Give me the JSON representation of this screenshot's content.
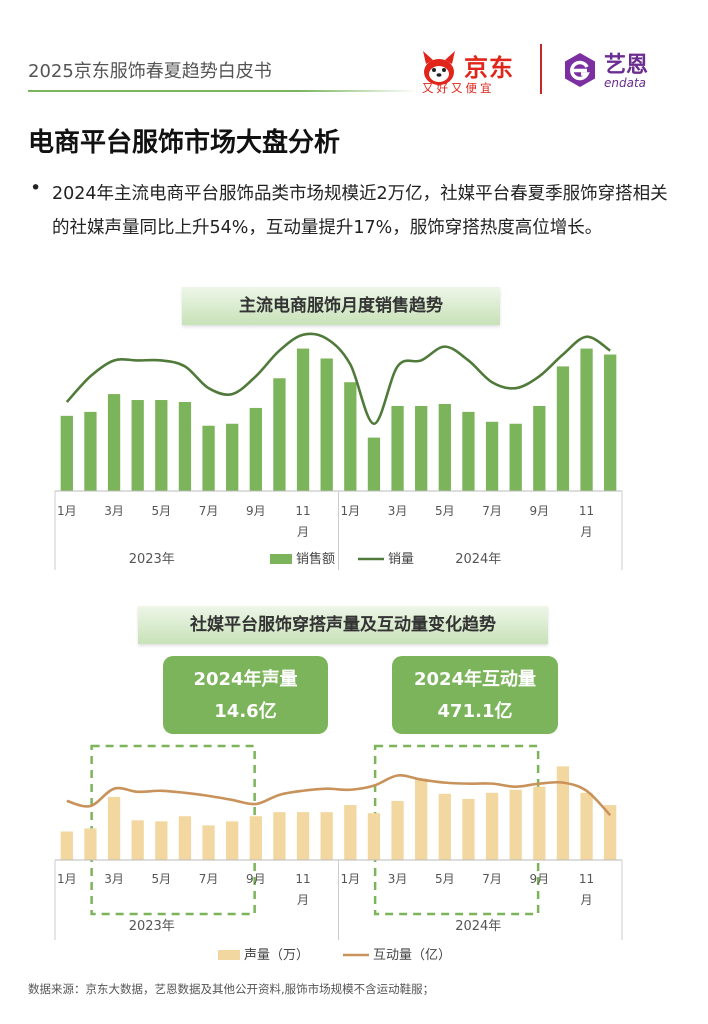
{
  "header": {
    "report_title": "2025京东服饰春夏趋势白皮书",
    "jd_name": "京东",
    "jd_slogan": "又好又便宜",
    "endata_cn": "艺恩",
    "endata_en": "endata"
  },
  "page_title": "电商平台服饰市场大盘分析",
  "intro": {
    "bullet": "•",
    "text": "2024年主流电商平台服饰品类市场规模近2万亿，社媒平台春夏季服饰穿搭相关的社媒声量同比上升54%，互动量提升17%，服饰穿搭热度高位增长。"
  },
  "stats": {
    "volume_label": "2024年声量",
    "volume_value": "14.6亿",
    "interaction_label": "2024年互动量",
    "interaction_value": "471.1亿"
  },
  "source_note": "数据来源：京东大数据，艺恩数据及其他公开资料,服饰市场规模不含运动鞋服；",
  "chart_data": [
    {
      "type": "bar",
      "title": "主流电商服饰月度销售趋势",
      "categories": [
        "1月",
        "2月",
        "3月",
        "4月",
        "5月",
        "6月",
        "7月",
        "8月",
        "9月",
        "10月",
        "11月",
        "12月",
        "1月",
        "2月",
        "3月",
        "4月",
        "5月",
        "6月",
        "7月",
        "8月",
        "9月",
        "10月",
        "11月",
        "12月"
      ],
      "tick_labels": [
        "1月",
        "",
        "3月",
        "",
        "5月",
        "",
        "7月",
        "",
        "9月",
        "",
        "11月",
        "",
        "1月",
        "",
        "3月",
        "",
        "5月",
        "",
        "7月",
        "",
        "9月",
        "",
        "11月",
        ""
      ],
      "groups": [
        {
          "label": "2023年",
          "from": 0,
          "to": 11
        },
        {
          "label": "2024年",
          "from": 12,
          "to": 23
        }
      ],
      "series": [
        {
          "name": "销售额",
          "kind": "bar",
          "color": "#7cb45b",
          "values": [
            38,
            40,
            49,
            46,
            46,
            45,
            33,
            34,
            42,
            57,
            72,
            67,
            55,
            27,
            43,
            43,
            44,
            40,
            35,
            34,
            43,
            63,
            72,
            69
          ]
        },
        {
          "name": "销量",
          "kind": "line",
          "color": "#4f7a3a",
          "values": [
            45,
            58,
            66,
            66,
            66,
            63,
            52,
            49,
            58,
            71,
            79,
            77,
            64,
            34,
            63,
            66,
            73,
            66,
            55,
            52,
            58,
            69,
            78,
            71
          ]
        }
      ],
      "ylim": [
        0,
        90
      ],
      "grid": false,
      "legend_position": "bottom-center"
    },
    {
      "type": "bar",
      "title": "社媒平台服饰穿搭声量及互动量变化趋势",
      "categories": [
        "1月",
        "2月",
        "3月",
        "4月",
        "5月",
        "6月",
        "7月",
        "8月",
        "9月",
        "10月",
        "11月",
        "12月",
        "1月",
        "2月",
        "3月",
        "4月",
        "5月",
        "6月",
        "7月",
        "8月",
        "9月",
        "10月",
        "11月",
        "12月"
      ],
      "tick_labels": [
        "1月",
        "",
        "3月",
        "",
        "5月",
        "",
        "7月",
        "",
        "9月",
        "",
        "11月",
        "",
        "1月",
        "",
        "3月",
        "",
        "5月",
        "",
        "7月",
        "",
        "9月",
        "",
        "11月",
        ""
      ],
      "groups": [
        {
          "label": "2023年",
          "from": 0,
          "to": 11
        },
        {
          "label": "2024年",
          "from": 12,
          "to": 23
        }
      ],
      "highlight_ranges": [
        {
          "from": 2,
          "to": 7
        },
        {
          "from": 14,
          "to": 19
        }
      ],
      "series": [
        {
          "name": "声量（万）",
          "kind": "bar",
          "color": "#f3d7a0",
          "values": [
            28,
            31,
            62,
            39,
            38,
            43,
            34,
            38,
            43,
            47,
            47,
            47,
            54,
            46,
            58,
            80,
            65,
            60,
            66,
            69,
            72,
            92,
            66,
            54
          ]
        },
        {
          "name": "互动量（亿）",
          "kind": "line",
          "color": "#c8925a",
          "values": [
            58,
            53,
            70,
            67,
            68,
            66,
            63,
            59,
            55,
            64,
            68,
            70,
            69,
            73,
            83,
            79,
            76,
            75,
            75,
            72,
            75,
            76,
            68,
            44
          ]
        }
      ],
      "ylim": [
        0,
        110
      ],
      "grid": false,
      "legend_position": "bottom-center"
    }
  ]
}
